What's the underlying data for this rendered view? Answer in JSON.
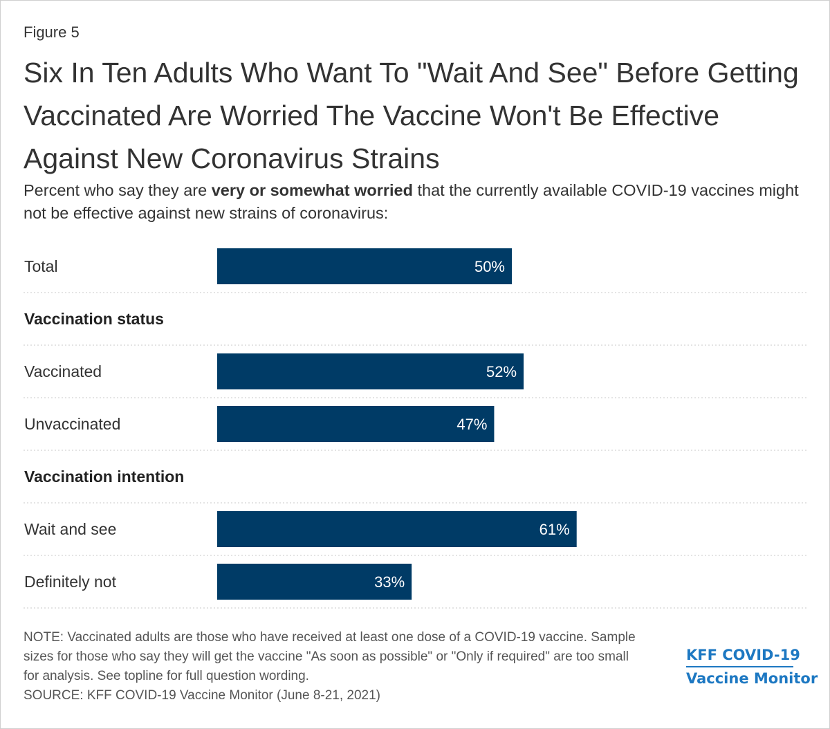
{
  "figure_label": "Figure 5",
  "subtitle": {
    "before": "Percent who say they are ",
    "bold": "very or somewhat worried",
    "after": " that the currently available COVID-19 vaccines might not be effective against new strains of coronavirus:"
  },
  "note": {
    "note_text": "NOTE: Vaccinated adults are those who have received at least one dose of a COVID-19 vaccine. Sample sizes for those who say they will get the vaccine \"As soon as possible\" or \"Only if required\" are too small for analysis. See topline for full question wording.",
    "source_text": "SOURCE: KFF COVID-19 Vaccine Monitor (June 8-21, 2021)"
  },
  "brand": {
    "line1": "KFF COVID-19",
    "line2": "Vaccine Monitor",
    "color": "#1d78c2"
  },
  "colors": {
    "bar": "#003b66",
    "bar_label": "#ffffff",
    "divider": "#c8c8c8"
  },
  "chart_data": {
    "type": "bar",
    "orientation": "horizontal",
    "title": "Six In Ten Adults Who Want To \"Wait And See\" Before Getting Vaccinated Are Worried The Vaccine Won't Be Effective Against New Coronavirus Strains",
    "xlim": [
      0,
      100
    ],
    "value_suffix": "%",
    "grid": false,
    "legend": "none",
    "rows": [
      {
        "kind": "bar",
        "category": "Total",
        "value": 50
      },
      {
        "kind": "header",
        "category": "Vaccination status"
      },
      {
        "kind": "bar",
        "category": "Vaccinated",
        "value": 52
      },
      {
        "kind": "bar",
        "category": "Unvaccinated",
        "value": 47
      },
      {
        "kind": "header",
        "category": "Vaccination intention"
      },
      {
        "kind": "bar",
        "category": "Wait and see",
        "value": 61
      },
      {
        "kind": "bar",
        "category": "Definitely not",
        "value": 33
      }
    ]
  }
}
